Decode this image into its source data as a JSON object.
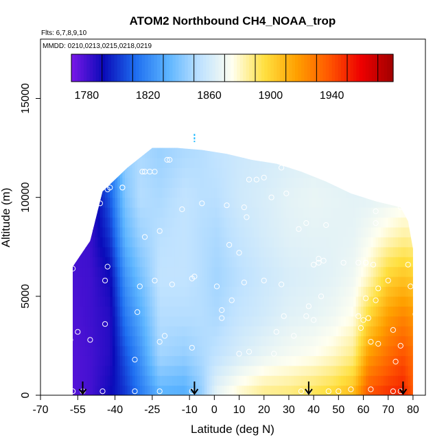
{
  "chart_data": {
    "type": "heatmap",
    "title": "ATOM2 Northbound CH4_NOAA_trop",
    "flights_note": "Flts: 6,7,8,9,10",
    "dates_note": "MMDD: 0210,0213,0215,0218,0219",
    "xlabel": "Latitude (deg N)",
    "ylabel": "Altitude (m)",
    "xlim": [
      -70,
      85
    ],
    "ylim": [
      0,
      18000
    ],
    "xticks": [
      -70,
      -55,
      -40,
      -25,
      -10,
      0,
      10,
      20,
      30,
      40,
      50,
      60,
      70,
      80
    ],
    "yticks": [
      0,
      5000,
      10000,
      15000
    ],
    "colorbar": {
      "min": 1770,
      "max": 1980,
      "step": 20,
      "tick_values": [
        1780,
        1820,
        1860,
        1900,
        1940
      ],
      "colors": [
        "#7a18e8",
        "#0a0ab8",
        "#1e6ef0",
        "#5cb4ff",
        "#bfe2ff",
        "#fffff0",
        "#ffe040",
        "#ffa000",
        "#ff5800",
        "#ee0000",
        "#a00000"
      ]
    },
    "envelope": [
      {
        "lat": -57,
        "top": 6500
      },
      {
        "lat": -50,
        "top": 7800
      },
      {
        "lat": -45,
        "top": 10300
      },
      {
        "lat": -35,
        "top": 11500
      },
      {
        "lat": -30,
        "top": 12000
      },
      {
        "lat": -25,
        "top": 12500
      },
      {
        "lat": -15,
        "top": 12500
      },
      {
        "lat": -5,
        "top": 12400
      },
      {
        "lat": 5,
        "top": 12200
      },
      {
        "lat": 15,
        "top": 11900
      },
      {
        "lat": 25,
        "top": 11700
      },
      {
        "lat": 35,
        "top": 11300
      },
      {
        "lat": 45,
        "top": 10800
      },
      {
        "lat": 55,
        "top": 10200
      },
      {
        "lat": 65,
        "top": 9800
      },
      {
        "lat": 75,
        "top": 9500
      },
      {
        "lat": 78,
        "top": 8800
      },
      {
        "lat": 80,
        "top": 7400
      }
    ],
    "profiles": [
      {
        "lat": 1,
        "values": [
          1868,
          1855,
          1850,
          1848,
          1850,
          1853,
          1855
        ]
      },
      {
        "lat": -50,
        "values": [
          1780,
          1780,
          1781,
          1781,
          1782,
          1782,
          1783
        ]
      },
      {
        "lat": -42,
        "values": [
          1790,
          1786,
          1786,
          1790,
          1800,
          1808,
          1815
        ]
      },
      {
        "lat": -55,
        "values": [
          1778,
          1778,
          1779,
          1780,
          1781,
          1782,
          1784
        ]
      },
      {
        "lat": -12,
        "values": [
          1830,
          1845,
          1852,
          1855,
          1855,
          1855,
          1850
        ]
      },
      {
        "lat": -30,
        "values": [
          1815,
          1822,
          1830,
          1838,
          1846,
          1852,
          1850
        ]
      },
      {
        "lat": -58,
        "values": [
          1776,
          1777,
          1778,
          1779,
          1780,
          1781,
          1783
        ]
      },
      {
        "lat": 30,
        "values": [
          1890,
          1872,
          1865,
          1862,
          1865,
          1866,
          1862
        ]
      },
      {
        "lat": 10,
        "values": [
          1880,
          1862,
          1856,
          1853,
          1856,
          1859,
          1858
        ]
      },
      {
        "lat": -22,
        "values": [
          1832,
          1848,
          1852,
          1855,
          1853,
          1850,
          1846
        ]
      },
      {
        "lat": 56,
        "values": [
          1910,
          1888,
          1876,
          1870,
          1867,
          1866,
          1862
        ]
      },
      {
        "lat": -36,
        "values": [
          1800,
          1806,
          1815,
          1823,
          1833,
          1840,
          1845
        ]
      },
      {
        "lat": 20,
        "values": [
          1888,
          1868,
          1860,
          1858,
          1861,
          1862,
          1860
        ]
      },
      {
        "lat": 62,
        "values": [
          1940,
          1918,
          1898,
          1880,
          1872,
          1866,
          1862
        ]
      },
      {
        "lat": -5,
        "values": [
          1845,
          1850,
          1852,
          1852,
          1852,
          1853,
          1852
        ]
      },
      {
        "lat": 40,
        "values": [
          1895,
          1875,
          1867,
          1864,
          1866,
          1868,
          1864
        ]
      },
      {
        "lat": 70,
        "values": [
          1948,
          1932,
          1918,
          1900,
          1880,
          1868,
          1864
        ]
      },
      {
        "lat": 48,
        "values": [
          1900,
          1880,
          1870,
          1866,
          1866,
          1867,
          1863
        ]
      },
      {
        "lat": 76,
        "values": [
          1952,
          1940,
          1925,
          1905,
          1885,
          1870,
          1866
        ]
      },
      {
        "lat": 80,
        "values": [
          1938,
          1932,
          1920,
          1902,
          1884,
          1870,
          1866
        ]
      }
    ],
    "observations": [
      {
        "lat": -60,
        "alt": 200
      },
      {
        "lat": -57,
        "alt": 200
      },
      {
        "lat": -53,
        "alt": 200
      },
      {
        "lat": -45,
        "alt": 200
      },
      {
        "lat": -32,
        "alt": 200
      },
      {
        "lat": -22,
        "alt": 200
      },
      {
        "lat": -9,
        "alt": 200
      },
      {
        "lat": 35,
        "alt": 200
      },
      {
        "lat": 38,
        "alt": 200
      },
      {
        "lat": 46,
        "alt": 200
      },
      {
        "lat": 50,
        "alt": 200
      },
      {
        "lat": 55,
        "alt": 300
      },
      {
        "lat": 63,
        "alt": 300
      },
      {
        "lat": 72,
        "alt": 200
      },
      {
        "lat": 75,
        "alt": 200
      },
      {
        "lat": -58,
        "alt": 2800
      },
      {
        "lat": -55,
        "alt": 3200
      },
      {
        "lat": -50,
        "alt": 2800
      },
      {
        "lat": -44,
        "alt": 3600
      },
      {
        "lat": -32,
        "alt": 1800
      },
      {
        "lat": -22,
        "alt": 2700
      },
      {
        "lat": -20,
        "alt": 3000
      },
      {
        "lat": -9,
        "alt": 2400
      },
      {
        "lat": -44,
        "alt": 5800
      },
      {
        "lat": -43,
        "alt": 6500
      },
      {
        "lat": -31,
        "alt": 4200
      },
      {
        "lat": -30,
        "alt": 5500
      },
      {
        "lat": -24,
        "alt": 5800
      },
      {
        "lat": -17,
        "alt": 5600
      },
      {
        "lat": -8,
        "alt": 6000
      },
      {
        "lat": -9,
        "alt": 5900
      },
      {
        "lat": 1,
        "alt": 5500
      },
      {
        "lat": 7,
        "alt": 4800
      },
      {
        "lat": 3,
        "alt": 4300
      },
      {
        "lat": 12,
        "alt": 5700
      },
      {
        "lat": 20,
        "alt": 5800
      },
      {
        "lat": 27,
        "alt": 5600
      },
      {
        "lat": 28,
        "alt": 4000
      },
      {
        "lat": 25,
        "alt": 3200
      },
      {
        "lat": 32,
        "alt": 3000
      },
      {
        "lat": 37,
        "alt": 4000
      },
      {
        "lat": 38,
        "alt": 4500
      },
      {
        "lat": 40,
        "alt": 3800
      },
      {
        "lat": 43,
        "alt": 5000
      },
      {
        "lat": 42,
        "alt": 6900
      },
      {
        "lat": 44,
        "alt": 6800
      },
      {
        "lat": 58,
        "alt": 4000
      },
      {
        "lat": 59,
        "alt": 3400
      },
      {
        "lat": 60,
        "alt": 3800
      },
      {
        "lat": 62,
        "alt": 3900
      },
      {
        "lat": 63,
        "alt": 2700
      },
      {
        "lat": 66,
        "alt": 2600
      },
      {
        "lat": 72,
        "alt": 3300
      },
      {
        "lat": 75,
        "alt": 2500
      },
      {
        "lat": 73,
        "alt": 1700
      },
      {
        "lat": 78,
        "alt": 6600
      },
      {
        "lat": 81,
        "alt": 4100
      },
      {
        "lat": 79,
        "alt": 5500
      },
      {
        "lat": 70,
        "alt": 5800
      },
      {
        "lat": 66,
        "alt": 5400
      },
      {
        "lat": 65,
        "alt": 4800
      },
      {
        "lat": 61,
        "alt": 4900
      },
      {
        "lat": 61,
        "alt": 6700
      },
      {
        "lat": 64,
        "alt": 6600
      },
      {
        "lat": 65,
        "alt": 8700
      },
      {
        "lat": 80,
        "alt": 8600
      },
      {
        "lat": 75,
        "alt": 9500
      },
      {
        "lat": 74,
        "alt": 10000
      },
      {
        "lat": 65,
        "alt": 9300
      },
      {
        "lat": 45,
        "alt": 8600
      },
      {
        "lat": 37,
        "alt": 8700
      },
      {
        "lat": 34,
        "alt": 8400
      },
      {
        "lat": 29,
        "alt": 10200
      },
      {
        "lat": 20,
        "alt": 11000
      },
      {
        "lat": 14,
        "alt": 10900
      },
      {
        "lat": 17,
        "alt": 10900
      },
      {
        "lat": 23,
        "alt": 10000
      },
      {
        "lat": 27,
        "alt": 11500
      },
      {
        "lat": 36,
        "alt": 11600
      },
      {
        "lat": 42,
        "alt": 11500
      },
      {
        "lat": -19,
        "alt": 11900
      },
      {
        "lat": -18,
        "alt": 11900
      },
      {
        "lat": -29,
        "alt": 11300
      },
      {
        "lat": -28,
        "alt": 11300
      },
      {
        "lat": -26,
        "alt": 11300
      },
      {
        "lat": -24,
        "alt": 11300
      },
      {
        "lat": -37,
        "alt": 10500
      },
      {
        "lat": -42,
        "alt": 10500
      },
      {
        "lat": -43,
        "alt": 10400
      },
      {
        "lat": -37,
        "alt": 10500
      },
      {
        "lat": -46,
        "alt": 9700
      },
      {
        "lat": -49,
        "alt": 9600
      },
      {
        "lat": -54,
        "alt": 7800
      },
      {
        "lat": -28,
        "alt": 8000
      },
      {
        "lat": -22,
        "alt": 8300
      },
      {
        "lat": -13,
        "alt": 9400
      },
      {
        "lat": -5,
        "alt": 9700
      },
      {
        "lat": 5,
        "alt": 9600
      },
      {
        "lat": 12,
        "alt": 9500
      },
      {
        "lat": 6,
        "alt": 7600
      },
      {
        "lat": 10,
        "alt": 7200
      },
      {
        "lat": 13,
        "alt": 9000
      },
      {
        "lat": 40,
        "alt": 6600
      },
      {
        "lat": 42,
        "alt": 6700
      },
      {
        "lat": 52,
        "alt": 6700
      },
      {
        "lat": 58,
        "alt": 6700
      },
      {
        "lat": -57,
        "alt": 6400
      },
      {
        "lat": 3,
        "alt": 3900
      },
      {
        "lat": 10,
        "alt": 2100
      },
      {
        "lat": 14,
        "alt": 2200
      },
      {
        "lat": 24,
        "alt": 2100
      }
    ],
    "arrows": [
      {
        "lat": -53,
        "alt": 0
      },
      {
        "lat": -8,
        "alt": 0
      },
      {
        "lat": 38,
        "alt": 0
      },
      {
        "lat": 76,
        "alt": 0
      }
    ],
    "tick_mark": {
      "lat": -8,
      "alt": 13000
    }
  }
}
